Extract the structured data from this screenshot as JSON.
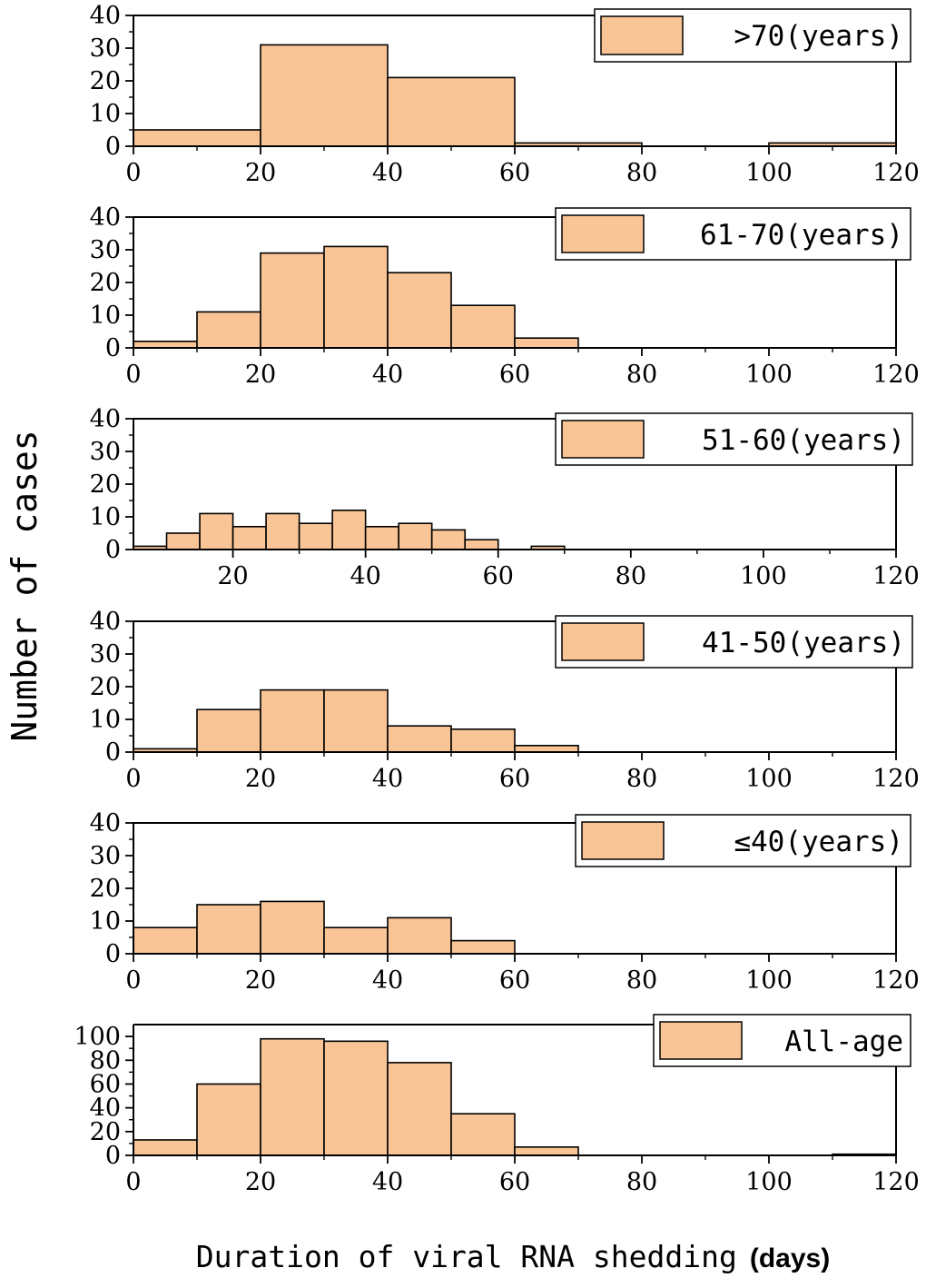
{
  "ylabel": "Number of cases",
  "xlabel": {
    "text": "Duration of viral RNA shedding",
    "unit": "(days)"
  },
  "colors": {
    "bar_fill": "#F9C596",
    "bar_edge": "#000000"
  },
  "chart_data": [
    {
      "type": "bar",
      "title": "",
      "legend": ">70(years)",
      "bins": [
        [
          0,
          20
        ],
        [
          20,
          40
        ],
        [
          40,
          60
        ],
        [
          60,
          80
        ],
        [
          80,
          100
        ],
        [
          100,
          120
        ]
      ],
      "values": [
        5,
        31,
        21,
        1,
        0,
        1
      ],
      "xlim": [
        0,
        120
      ],
      "ylim": [
        0,
        40
      ],
      "yticks": [
        0,
        10,
        20,
        30,
        40
      ],
      "xticks": [
        0,
        20,
        40,
        60,
        80,
        100,
        120
      ],
      "legend_position": "top-right"
    },
    {
      "type": "bar",
      "title": "",
      "legend": "61-70(years)",
      "bins": [
        [
          0,
          10
        ],
        [
          10,
          20
        ],
        [
          20,
          30
        ],
        [
          30,
          40
        ],
        [
          40,
          50
        ],
        [
          50,
          60
        ],
        [
          60,
          70
        ]
      ],
      "values": [
        2,
        11,
        29,
        31,
        23,
        13,
        3
      ],
      "xlim": [
        0,
        120
      ],
      "ylim": [
        0,
        40
      ],
      "yticks": [
        0,
        10,
        20,
        30,
        40
      ],
      "xticks": [
        0,
        20,
        40,
        60,
        80,
        100,
        120
      ],
      "legend_position": "top-right"
    },
    {
      "type": "bar",
      "title": "",
      "legend": "51-60(years)",
      "bins": [
        [
          5,
          10
        ],
        [
          10,
          15
        ],
        [
          15,
          20
        ],
        [
          20,
          25
        ],
        [
          25,
          30
        ],
        [
          30,
          35
        ],
        [
          35,
          40
        ],
        [
          40,
          45
        ],
        [
          45,
          50
        ],
        [
          50,
          55
        ],
        [
          55,
          60
        ],
        [
          60,
          65
        ],
        [
          65,
          70
        ]
      ],
      "values": [
        1,
        5,
        11,
        7,
        11,
        8,
        12,
        7,
        8,
        6,
        3,
        0,
        1
      ],
      "xlim": [
        5,
        120
      ],
      "ylim": [
        0,
        40
      ],
      "yticks": [
        0,
        10,
        20,
        30,
        40
      ],
      "xticks": [
        20,
        40,
        60,
        80,
        100,
        120
      ],
      "legend_position": "top-right"
    },
    {
      "type": "bar",
      "title": "",
      "legend": "41-50(years)",
      "bins": [
        [
          0,
          10
        ],
        [
          10,
          20
        ],
        [
          20,
          30
        ],
        [
          30,
          40
        ],
        [
          40,
          50
        ],
        [
          50,
          60
        ],
        [
          60,
          70
        ]
      ],
      "values": [
        1,
        13,
        19,
        19,
        8,
        7,
        2
      ],
      "xlim": [
        0,
        120
      ],
      "ylim": [
        0,
        40
      ],
      "yticks": [
        0,
        10,
        20,
        30,
        40
      ],
      "xticks": [
        0,
        20,
        40,
        60,
        80,
        100,
        120
      ],
      "legend_position": "top-right"
    },
    {
      "type": "bar",
      "title": "",
      "legend": "≤40(years)",
      "bins": [
        [
          0,
          10
        ],
        [
          10,
          20
        ],
        [
          20,
          30
        ],
        [
          30,
          40
        ],
        [
          40,
          50
        ],
        [
          50,
          60
        ]
      ],
      "values": [
        8,
        15,
        16,
        8,
        11,
        4
      ],
      "xlim": [
        0,
        120
      ],
      "ylim": [
        0,
        40
      ],
      "yticks": [
        0,
        10,
        20,
        30,
        40
      ],
      "xticks": [
        0,
        20,
        40,
        60,
        80,
        100,
        120
      ],
      "legend_position": "top-right"
    },
    {
      "type": "bar",
      "title": "",
      "legend": "All-age",
      "bins": [
        [
          0,
          10
        ],
        [
          10,
          20
        ],
        [
          20,
          30
        ],
        [
          30,
          40
        ],
        [
          40,
          50
        ],
        [
          50,
          60
        ],
        [
          60,
          70
        ],
        [
          70,
          80
        ],
        [
          80,
          90
        ],
        [
          90,
          100
        ],
        [
          100,
          110
        ],
        [
          110,
          120
        ]
      ],
      "values": [
        13,
        60,
        98,
        96,
        78,
        35,
        7,
        0,
        0,
        0,
        0,
        1
      ],
      "xlim": [
        0,
        120
      ],
      "ylim": [
        0,
        110
      ],
      "yticks": [
        0,
        20,
        40,
        60,
        80,
        100
      ],
      "xticks": [
        0,
        20,
        40,
        60,
        80,
        100,
        120
      ],
      "legend_position": "top-right"
    }
  ]
}
